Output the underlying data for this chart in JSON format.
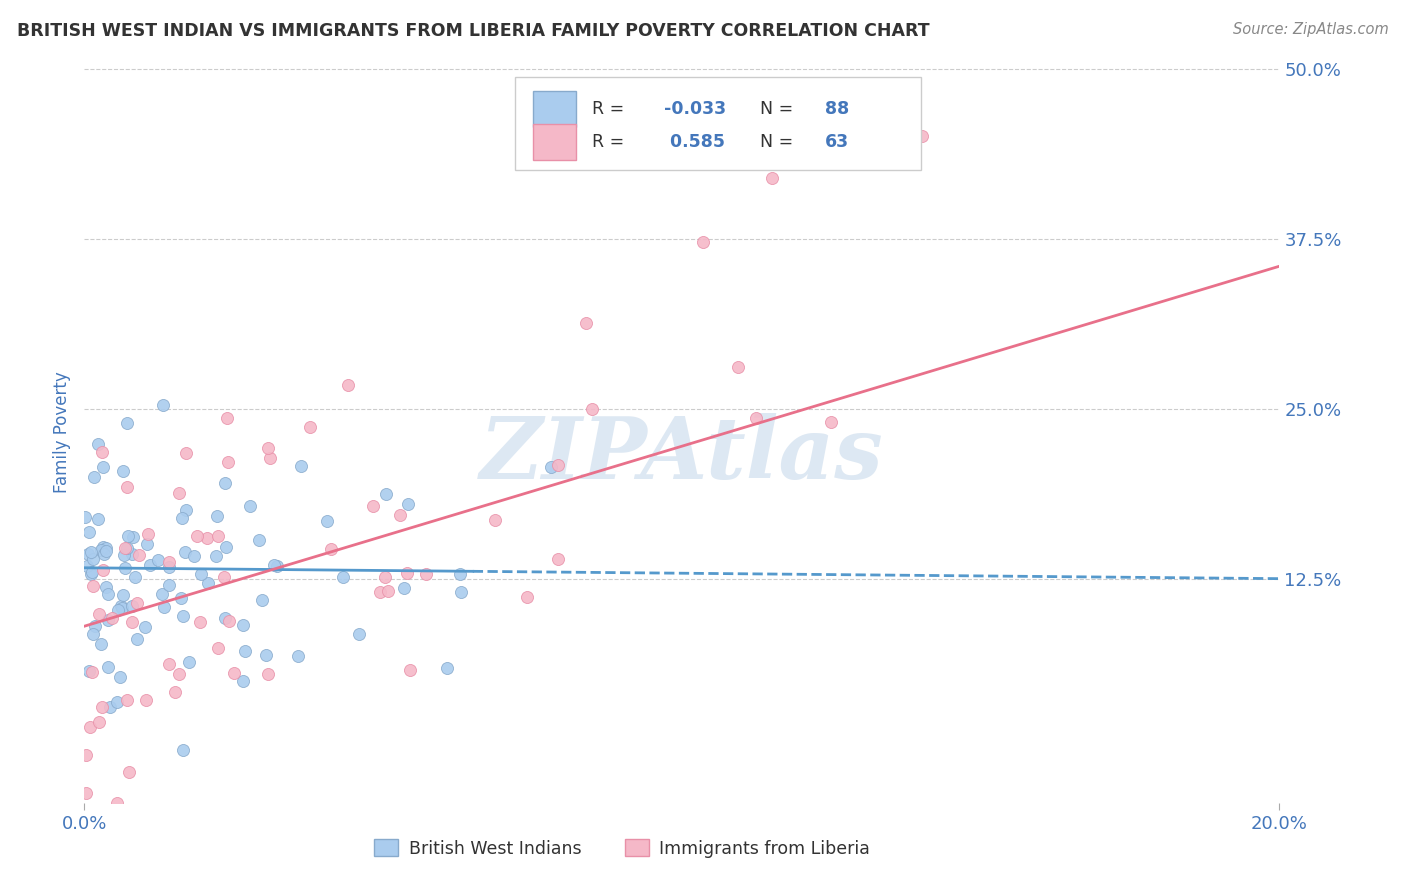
{
  "title": "BRITISH WEST INDIAN VS IMMIGRANTS FROM LIBERIA FAMILY POVERTY CORRELATION CHART",
  "source": "Source: ZipAtlas.com",
  "ylabel": "Family Poverty",
  "x_min": 0.0,
  "x_max": 0.2,
  "y_min": -0.04,
  "y_max": 0.505,
  "y_ticks": [
    0.125,
    0.25,
    0.375,
    0.5
  ],
  "y_tick_labels": [
    "12.5%",
    "25.0%",
    "37.5%",
    "50.0%"
  ],
  "x_ticks": [
    0.0,
    0.2
  ],
  "x_tick_labels": [
    "0.0%",
    "20.0%"
  ],
  "series1_name": "British West Indians",
  "series1_color": "#aaccee",
  "series1_edge_color": "#88aacc",
  "series1_line_color": "#5599cc",
  "series1_R": -0.033,
  "series1_N": 88,
  "series2_name": "Immigrants from Liberia",
  "series2_color": "#f5b8c8",
  "series2_edge_color": "#e890a8",
  "series2_line_color": "#e8708a",
  "series2_R": 0.585,
  "series2_N": 63,
  "background_color": "#ffffff",
  "watermark": "ZIPAtlas",
  "watermark_color_r": 0.78,
  "watermark_color_g": 0.85,
  "watermark_color_b": 0.92,
  "grid_color": "#cccccc",
  "title_color": "#333333",
  "tick_label_color": "#4477bb",
  "axis_label_color": "#4477bb",
  "source_color": "#888888",
  "legend_text_color": "#333333",
  "legend_value_color": "#4477bb"
}
